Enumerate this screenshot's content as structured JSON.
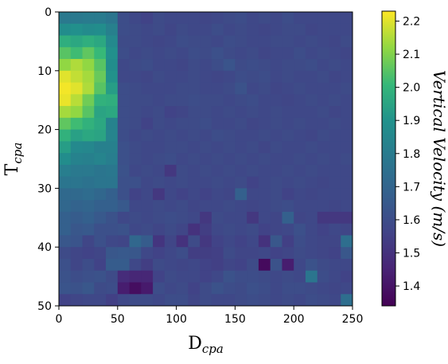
{
  "chart_data": {
    "type": "heatmap",
    "title": "",
    "xlabel": "D",
    "xlabel_sub": "cpa",
    "ylabel": "T",
    "ylabel_sub": "cpa",
    "xlim": [
      0,
      250
    ],
    "ylim": [
      50,
      0
    ],
    "xticks": [
      0,
      50,
      100,
      150,
      200,
      250
    ],
    "yticks": [
      0,
      10,
      20,
      30,
      40,
      50
    ],
    "cell_size_x": 10,
    "cell_size_y": 2,
    "colormap": "viridis",
    "colorbar": {
      "label": "Vertical Velocity (m/s)",
      "vmin": 1.34,
      "vmax": 2.23,
      "ticks": [
        1.4,
        1.5,
        1.6,
        1.7,
        1.8,
        1.9,
        2.0,
        2.1,
        2.2
      ]
    },
    "values": [
      [
        1.79,
        1.79,
        1.8,
        1.8,
        1.77,
        1.6,
        1.58,
        1.56,
        1.59,
        1.58,
        1.58,
        1.58,
        1.57,
        1.58,
        1.59,
        1.6,
        1.58,
        1.59,
        1.58,
        1.6,
        1.58,
        1.58,
        1.58,
        1.58,
        1.58
      ],
      [
        1.88,
        1.89,
        1.87,
        1.88,
        1.82,
        1.6,
        1.59,
        1.58,
        1.59,
        1.57,
        1.59,
        1.58,
        1.58,
        1.6,
        1.58,
        1.59,
        1.58,
        1.57,
        1.58,
        1.59,
        1.59,
        1.57,
        1.58,
        1.58,
        1.58
      ],
      [
        1.98,
        1.96,
        1.98,
        1.96,
        1.86,
        1.59,
        1.59,
        1.58,
        1.57,
        1.58,
        1.6,
        1.59,
        1.59,
        1.58,
        1.6,
        1.59,
        1.58,
        1.58,
        1.59,
        1.59,
        1.58,
        1.59,
        1.58,
        1.57,
        1.59
      ],
      [
        2.05,
        2.02,
        2.06,
        2.01,
        1.89,
        1.6,
        1.58,
        1.59,
        1.58,
        1.59,
        1.58,
        1.6,
        1.59,
        1.61,
        1.59,
        1.58,
        1.59,
        1.57,
        1.58,
        1.58,
        1.6,
        1.58,
        1.59,
        1.58,
        1.57
      ],
      [
        2.12,
        2.15,
        2.12,
        2.05,
        1.88,
        1.58,
        1.59,
        1.6,
        1.58,
        1.58,
        1.57,
        1.59,
        1.58,
        1.6,
        1.63,
        1.59,
        1.6,
        1.59,
        1.58,
        1.59,
        1.59,
        1.6,
        1.58,
        1.59,
        1.58
      ],
      [
        2.2,
        2.17,
        2.14,
        2.07,
        1.9,
        1.58,
        1.58,
        1.57,
        1.59,
        1.58,
        1.58,
        1.59,
        1.58,
        1.57,
        1.58,
        1.6,
        1.59,
        1.6,
        1.58,
        1.59,
        1.58,
        1.58,
        1.59,
        1.57,
        1.58
      ],
      [
        2.22,
        2.2,
        2.15,
        2.05,
        1.93,
        1.6,
        1.59,
        1.58,
        1.58,
        1.58,
        1.59,
        1.59,
        1.58,
        1.58,
        1.59,
        1.62,
        1.58,
        1.59,
        1.57,
        1.58,
        1.59,
        1.58,
        1.58,
        1.58,
        1.59
      ],
      [
        2.21,
        2.16,
        2.08,
        1.99,
        1.98,
        1.6,
        1.59,
        1.59,
        1.58,
        1.59,
        1.59,
        1.6,
        1.59,
        1.59,
        1.58,
        1.59,
        1.6,
        1.58,
        1.58,
        1.57,
        1.58,
        1.59,
        1.58,
        1.59,
        1.58
      ],
      [
        2.14,
        2.12,
        2.05,
        1.95,
        1.96,
        1.6,
        1.59,
        1.58,
        1.59,
        1.56,
        1.57,
        1.59,
        1.59,
        1.58,
        1.59,
        1.58,
        1.59,
        1.58,
        1.59,
        1.58,
        1.58,
        1.58,
        1.59,
        1.57,
        1.58
      ],
      [
        2.06,
        2.02,
        1.99,
        1.96,
        1.83,
        1.6,
        1.59,
        1.56,
        1.59,
        1.58,
        1.59,
        1.59,
        1.6,
        1.58,
        1.58,
        1.59,
        1.57,
        1.58,
        1.59,
        1.58,
        1.59,
        1.58,
        1.58,
        1.59,
        1.58
      ],
      [
        1.99,
        1.94,
        1.96,
        1.95,
        1.84,
        1.6,
        1.58,
        1.59,
        1.58,
        1.59,
        1.58,
        1.59,
        1.58,
        1.6,
        1.59,
        1.58,
        1.58,
        1.59,
        1.58,
        1.59,
        1.58,
        1.57,
        1.59,
        1.58,
        1.58
      ],
      [
        1.93,
        1.86,
        1.85,
        1.82,
        1.82,
        1.61,
        1.59,
        1.58,
        1.58,
        1.59,
        1.59,
        1.58,
        1.59,
        1.58,
        1.59,
        1.58,
        1.59,
        1.57,
        1.59,
        1.58,
        1.58,
        1.59,
        1.58,
        1.58,
        1.58
      ],
      [
        1.88,
        1.83,
        1.82,
        1.84,
        1.81,
        1.61,
        1.59,
        1.58,
        1.59,
        1.6,
        1.58,
        1.59,
        1.58,
        1.59,
        1.58,
        1.59,
        1.58,
        1.59,
        1.58,
        1.58,
        1.59,
        1.58,
        1.59,
        1.58,
        1.59
      ],
      [
        1.81,
        1.79,
        1.79,
        1.77,
        1.78,
        1.62,
        1.58,
        1.59,
        1.58,
        1.52,
        1.59,
        1.58,
        1.59,
        1.58,
        1.59,
        1.58,
        1.59,
        1.58,
        1.58,
        1.59,
        1.58,
        1.59,
        1.58,
        1.58,
        1.58
      ],
      [
        1.77,
        1.77,
        1.76,
        1.77,
        1.77,
        1.61,
        1.61,
        1.58,
        1.59,
        1.58,
        1.59,
        1.58,
        1.58,
        1.59,
        1.58,
        1.59,
        1.56,
        1.58,
        1.59,
        1.58,
        1.59,
        1.58,
        1.57,
        1.58,
        1.58
      ],
      [
        1.72,
        1.72,
        1.73,
        1.71,
        1.68,
        1.61,
        1.56,
        1.58,
        1.52,
        1.58,
        1.56,
        1.58,
        1.56,
        1.58,
        1.57,
        1.68,
        1.58,
        1.58,
        1.59,
        1.56,
        1.58,
        1.57,
        1.58,
        1.58,
        1.58
      ],
      [
        1.71,
        1.69,
        1.7,
        1.68,
        1.68,
        1.65,
        1.58,
        1.58,
        1.59,
        1.58,
        1.59,
        1.57,
        1.58,
        1.58,
        1.59,
        1.58,
        1.57,
        1.58,
        1.59,
        1.6,
        1.58,
        1.58,
        1.58,
        1.57,
        1.58
      ],
      [
        1.68,
        1.66,
        1.68,
        1.65,
        1.62,
        1.58,
        1.59,
        1.58,
        1.59,
        1.6,
        1.59,
        1.58,
        1.52,
        1.59,
        1.58,
        1.58,
        1.52,
        1.58,
        1.57,
        1.68,
        1.57,
        1.58,
        1.52,
        1.52,
        1.52
      ],
      [
        1.68,
        1.64,
        1.65,
        1.61,
        1.61,
        1.62,
        1.58,
        1.59,
        1.57,
        1.59,
        1.57,
        1.5,
        1.54,
        1.58,
        1.59,
        1.58,
        1.59,
        1.56,
        1.57,
        1.58,
        1.61,
        1.58,
        1.56,
        1.58,
        1.57
      ],
      [
        1.64,
        1.63,
        1.57,
        1.61,
        1.58,
        1.57,
        1.71,
        1.66,
        1.51,
        1.57,
        1.5,
        1.59,
        1.52,
        1.56,
        1.58,
        1.56,
        1.58,
        1.5,
        1.64,
        1.55,
        1.6,
        1.58,
        1.57,
        1.57,
        1.74
      ],
      [
        1.59,
        1.57,
        1.56,
        1.57,
        1.64,
        1.65,
        1.64,
        1.58,
        1.56,
        1.58,
        1.6,
        1.54,
        1.54,
        1.55,
        1.59,
        1.57,
        1.57,
        1.58,
        1.56,
        1.57,
        1.59,
        1.58,
        1.57,
        1.56,
        1.64
      ],
      [
        1.61,
        1.57,
        1.6,
        1.56,
        1.66,
        1.66,
        1.58,
        1.54,
        1.59,
        1.58,
        1.57,
        1.58,
        1.56,
        1.55,
        1.57,
        1.56,
        1.59,
        1.37,
        1.62,
        1.43,
        1.58,
        1.62,
        1.59,
        1.58,
        1.58
      ],
      [
        1.62,
        1.6,
        1.61,
        1.62,
        1.59,
        1.48,
        1.46,
        1.46,
        1.56,
        1.59,
        1.58,
        1.58,
        1.56,
        1.58,
        1.62,
        1.6,
        1.6,
        1.59,
        1.58,
        1.59,
        1.58,
        1.77,
        1.6,
        1.58,
        1.56
      ],
      [
        1.63,
        1.62,
        1.64,
        1.59,
        1.6,
        1.43,
        1.38,
        1.42,
        1.6,
        1.58,
        1.59,
        1.56,
        1.59,
        1.62,
        1.6,
        1.59,
        1.61,
        1.6,
        1.58,
        1.6,
        1.6,
        1.59,
        1.58,
        1.57,
        1.58
      ],
      [
        1.56,
        1.57,
        1.58,
        1.58,
        1.55,
        1.58,
        1.59,
        1.59,
        1.58,
        1.6,
        1.6,
        1.57,
        1.59,
        1.58,
        1.58,
        1.59,
        1.6,
        1.59,
        1.58,
        1.59,
        1.58,
        1.6,
        1.59,
        1.58,
        1.74
      ]
    ]
  }
}
